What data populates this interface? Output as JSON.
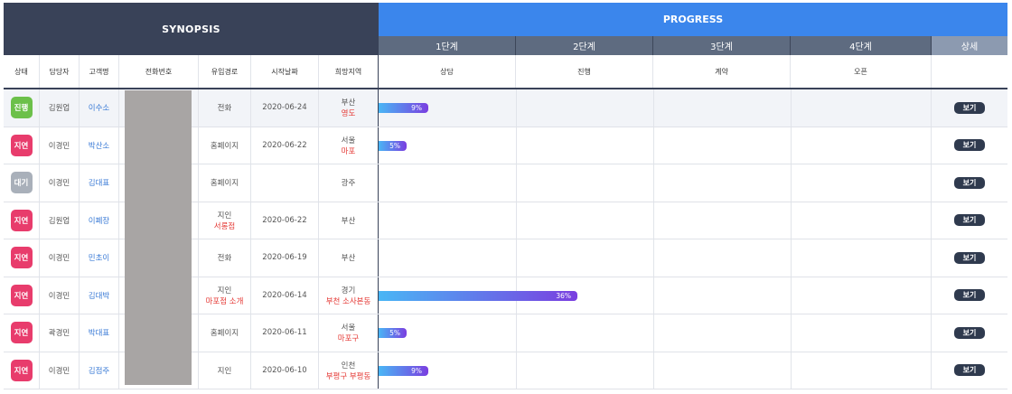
{
  "header": {
    "synopsis_label": "SYNOPSIS",
    "progress_label": "PROGRESS",
    "stages": [
      "1단계",
      "2단계",
      "3단계",
      "4단계"
    ],
    "detail_label": "상세"
  },
  "columns": {
    "status": "상태",
    "manager": "담당자",
    "customer": "고객명",
    "phone": "전화번호",
    "channel": "유입경로",
    "start_date": "시작날짜",
    "region": "희망지역",
    "stage_names": [
      "상담",
      "진행",
      "계약",
      "오픈"
    ]
  },
  "status_colors": {
    "진행": "#6cc04a",
    "지연": "#e83c6c",
    "대기": "#a9b0ba"
  },
  "rows": [
    {
      "status": "진행",
      "manager": "김원업",
      "customer": "이수소",
      "channel": "전화",
      "channel_sub": "",
      "date": "2020-06-24",
      "region": "부산",
      "region_sub": "영도",
      "progress": 9,
      "progress_label": "9%",
      "view": "보기"
    },
    {
      "status": "지연",
      "manager": "이경민",
      "customer": "박산소",
      "channel": "홈페이지",
      "channel_sub": "",
      "date": "2020-06-22",
      "region": "서울",
      "region_sub": "마포",
      "progress": 5,
      "progress_label": "5%",
      "view": "보기"
    },
    {
      "status": "대기",
      "manager": "이경민",
      "customer": "김대표",
      "channel": "홈페이지",
      "channel_sub": "",
      "date": "",
      "region": "광주",
      "region_sub": "",
      "progress": 0,
      "progress_label": "",
      "view": "보기"
    },
    {
      "status": "지연",
      "manager": "김원업",
      "customer": "이폐장",
      "channel": "지인",
      "channel_sub": "서롱점",
      "date": "2020-06-22",
      "region": "부산",
      "region_sub": "",
      "progress": 0,
      "progress_label": "",
      "view": "보기"
    },
    {
      "status": "지연",
      "manager": "이경민",
      "customer": "민초이",
      "channel": "전화",
      "channel_sub": "",
      "date": "2020-06-19",
      "region": "부산",
      "region_sub": "",
      "progress": 0,
      "progress_label": "",
      "view": "보기"
    },
    {
      "status": "지연",
      "manager": "이경민",
      "customer": "김대박",
      "channel": "지인",
      "channel_sub": "마포점 소개",
      "date": "2020-06-14",
      "region": "경기",
      "region_sub": "부천 소사본동",
      "progress": 36,
      "progress_label": "36%",
      "view": "보기"
    },
    {
      "status": "지연",
      "manager": "곽경민",
      "customer": "박대표",
      "channel": "홈페이지",
      "channel_sub": "",
      "date": "2020-06-11",
      "region": "서울",
      "region_sub": "마포구",
      "progress": 5,
      "progress_label": "5%",
      "view": "보기"
    },
    {
      "status": "지연",
      "manager": "이경민",
      "customer": "김점주",
      "channel": "지인",
      "channel_sub": "",
      "date": "2020-06-10",
      "region": "인천",
      "region_sub": "부평구 부평동",
      "progress": 9,
      "progress_label": "9%",
      "view": "보기"
    }
  ]
}
